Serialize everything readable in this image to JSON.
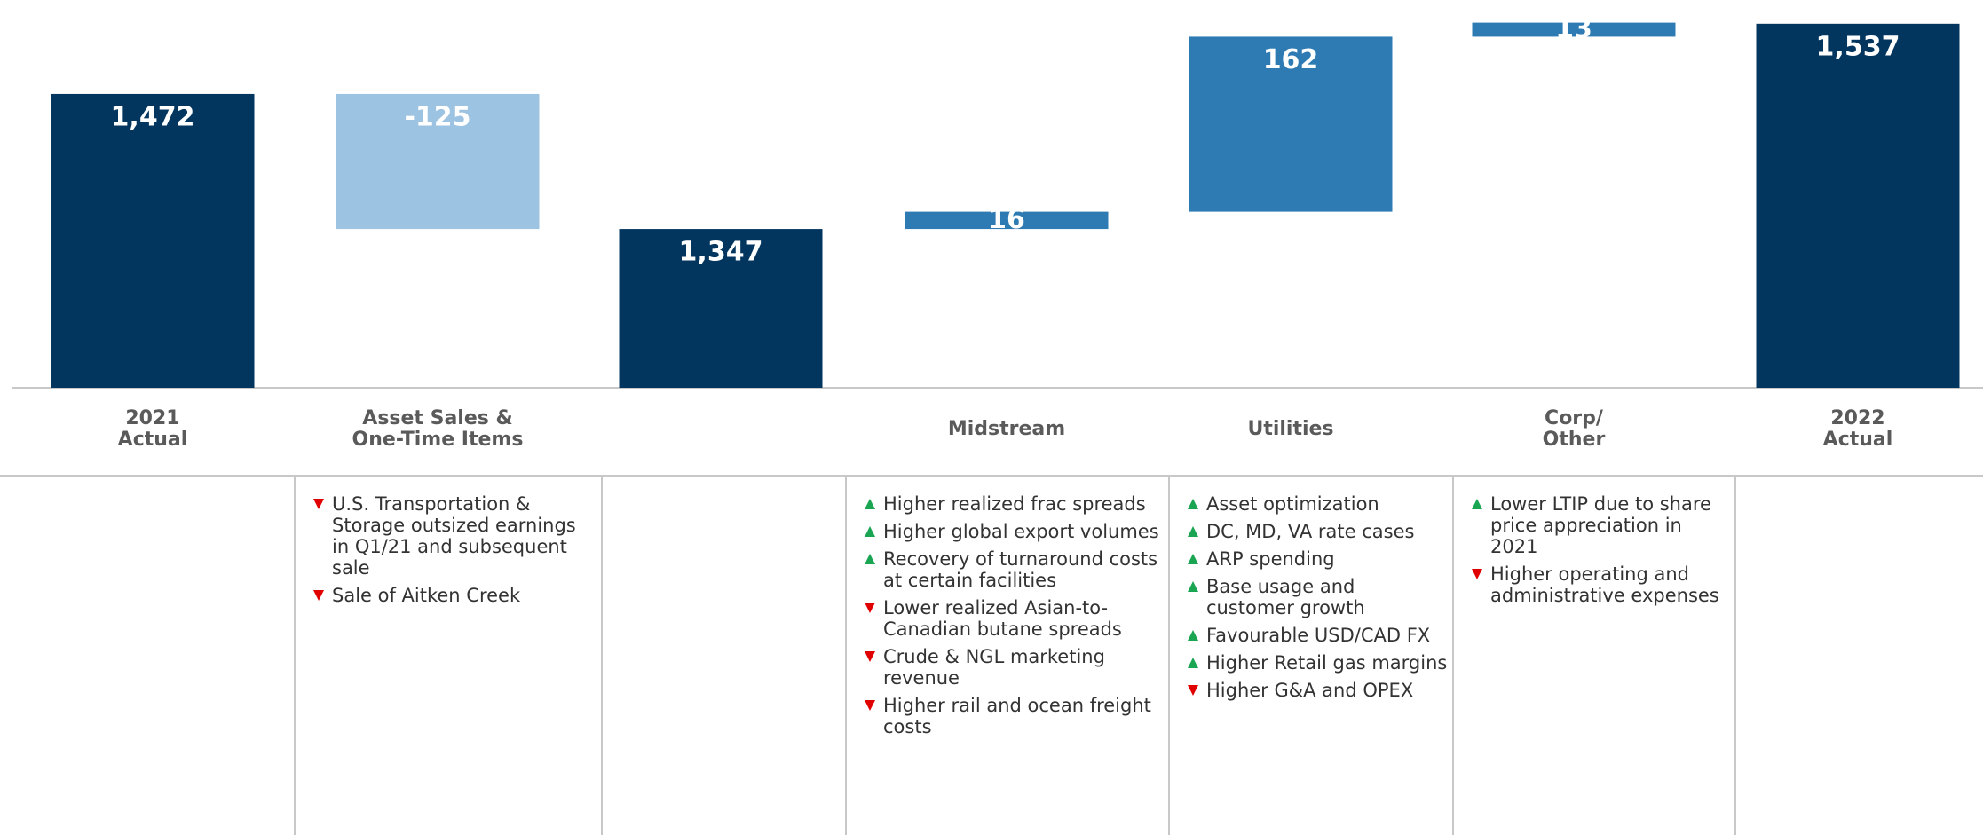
{
  "chart_data": {
    "type": "waterfall",
    "categories": [
      "2021\nActual",
      "Asset Sales &\nOne-Time Items",
      null,
      "Midstream",
      "Utilities",
      "Corp/\nOther",
      "2022\nActual"
    ],
    "values": [
      1472,
      -125,
      1347,
      16,
      162,
      13,
      1537
    ],
    "value_labels": [
      "1,472",
      "-125",
      "1,347",
      "16",
      "162",
      "13",
      "1,537"
    ],
    "measures": [
      "total",
      "relative",
      "total",
      "relative",
      "relative",
      "relative",
      "total"
    ],
    "colors": [
      "#03365f",
      "#9dc3e2",
      "#03365f",
      "#2e7bb4",
      "#2e7bb4",
      "#2e7bb4",
      "#03365f"
    ],
    "ylim": [
      1200,
      1550
    ],
    "notes": [
      [],
      [
        {
          "direction": "down",
          "text": "U.S. Transportation & Storage outsized earnings in Q1/21 and subsequent sale"
        },
        {
          "direction": "down",
          "text": "Sale of Aitken Creek"
        }
      ],
      [],
      [
        {
          "direction": "up",
          "text": "Higher realized frac spreads"
        },
        {
          "direction": "up",
          "text": "Higher global export volumes"
        },
        {
          "direction": "up",
          "text": "Recovery of turnaround costs at certain facilities"
        },
        {
          "direction": "down",
          "text": "Lower realized Asian-to-Canadian butane spreads"
        },
        {
          "direction": "down",
          "text": "Crude & NGL marketing revenue"
        },
        {
          "direction": "down",
          "text": "Higher rail and ocean freight costs"
        }
      ],
      [
        {
          "direction": "up",
          "text": "Asset optimization"
        },
        {
          "direction": "up",
          "text": "DC, MD, VA rate cases"
        },
        {
          "direction": "up",
          "text": "ARP spending"
        },
        {
          "direction": "up",
          "text": "Base usage and customer growth"
        },
        {
          "direction": "up",
          "text": "Favourable USD/CAD FX"
        },
        {
          "direction": "up",
          "text": "Higher Retail gas margins"
        },
        {
          "direction": "down",
          "text": "Higher G&A and OPEX"
        }
      ],
      [
        {
          "direction": "up",
          "text": "Lower LTIP due to share price appreciation in 2021"
        },
        {
          "direction": "down",
          "text": "Higher operating and administrative expenses"
        }
      ],
      []
    ]
  }
}
